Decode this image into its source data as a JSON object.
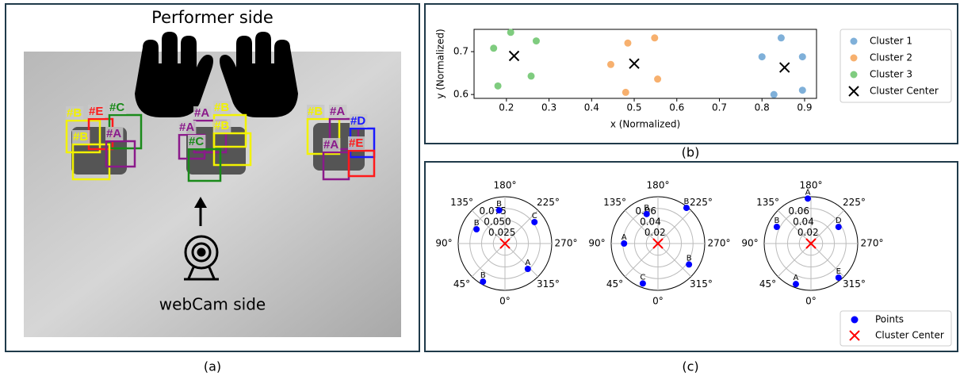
{
  "panel_a": {
    "top_label": "Performer side",
    "bottom_label": "webCam side",
    "boxes": [
      {
        "label": "#B",
        "color": "#f2f200"
      },
      {
        "label": "#E",
        "color": "#ff1a1a"
      },
      {
        "label": "#C",
        "color": "#1a8a1a"
      },
      {
        "label": "#B",
        "color": "#f2f200"
      },
      {
        "label": "#A",
        "color": "#8b1a8b"
      },
      {
        "label": "#A",
        "color": "#8b1a8b"
      },
      {
        "label": "#B",
        "color": "#f2f200"
      },
      {
        "label": "#A",
        "color": "#8b1a8b"
      },
      {
        "label": "#B",
        "color": "#f2f200"
      },
      {
        "label": "#C",
        "color": "#1a8a1a"
      },
      {
        "label": "#B",
        "color": "#f2f200"
      },
      {
        "label": "#A",
        "color": "#8b1a8b"
      },
      {
        "label": "#D",
        "color": "#1a1aff"
      },
      {
        "label": "#A",
        "color": "#8b1a8b"
      },
      {
        "label": "#E",
        "color": "#ff1a1a"
      }
    ]
  },
  "captions": [
    "(a)",
    "(b)",
    "(c)"
  ],
  "chart_data": [
    {
      "type": "scatter",
      "x_label": "x (Normalized)",
      "y_label": "y (Normalized)",
      "xlim": [
        0.124,
        0.928
      ],
      "ylim": [
        0.591,
        0.752
      ],
      "xticks": [
        0.2,
        0.3,
        0.4,
        0.5,
        0.6,
        0.7,
        0.8,
        0.9
      ],
      "yticks": [
        0.6,
        0.7
      ],
      "series": [
        {
          "name": "Cluster 1",
          "color": "#7fb0d9",
          "marker": "o",
          "x": [
            0.8,
            0.845,
            0.895,
            0.895,
            0.828
          ],
          "values": [
            0.688,
            0.732,
            0.688,
            0.61,
            0.6
          ]
        },
        {
          "name": "Cluster 2",
          "color": "#f7b06e",
          "marker": "o",
          "x": [
            0.485,
            0.548,
            0.445,
            0.555,
            0.48
          ],
          "values": [
            0.72,
            0.732,
            0.67,
            0.636,
            0.605
          ]
        },
        {
          "name": "Cluster 3",
          "color": "#7fcc7f",
          "marker": "o",
          "x": [
            0.21,
            0.27,
            0.17,
            0.258,
            0.18
          ],
          "values": [
            0.745,
            0.725,
            0.708,
            0.643,
            0.62
          ]
        },
        {
          "name": "Cluster Center",
          "color": "#000000",
          "marker": "x",
          "x": [
            0.218,
            0.5,
            0.853
          ],
          "values": [
            0.69,
            0.672,
            0.663
          ]
        }
      ]
    },
    {
      "type": "polar",
      "rlim": [
        0,
        0.1
      ],
      "rticks": [
        0.025,
        {
          "value": 0.05,
          "label": "0.050"
        },
        0.075
      ],
      "thetaticks": [
        {
          "value": 0,
          "label": "0°"
        },
        {
          "value": 45,
          "label": "45°"
        },
        {
          "value": 90,
          "label": "90°"
        },
        {
          "value": 135,
          "label": "135°"
        },
        {
          "value": 180,
          "label": "180°"
        },
        {
          "value": 225,
          "label": "225°"
        },
        {
          "value": 270,
          "label": "270°"
        },
        {
          "value": 315,
          "label": "315°"
        }
      ],
      "series": [
        {
          "color": "#0000ff",
          "marker": "o",
          "theta": [
            170,
            234,
            116.6,
            318,
            30
          ],
          "values": [
            0.072,
            0.078,
            0.068,
            0.073,
            0.094
          ],
          "labels": [
            "B",
            "C",
            "B",
            "A",
            "B"
          ]
        },
        {
          "color": "#ff0000",
          "marker": "x",
          "theta": [
            0
          ],
          "values": [
            0
          ]
        }
      ]
    },
    {
      "type": "polar",
      "rlim": [
        0,
        0.08
      ],
      "rticks": [
        0.02,
        0.04,
        0.06
      ],
      "thetaticks": [
        {
          "value": 0,
          "label": "0°"
        },
        {
          "value": 45,
          "label": "45°"
        },
        {
          "value": 90,
          "label": "90°"
        },
        {
          "value": 135,
          "label": "135°"
        },
        {
          "value": 180,
          "label": "180°"
        },
        {
          "value": 225,
          "label": "225°"
        },
        {
          "value": 270,
          "label": "270°"
        },
        {
          "value": 315,
          "label": "315°"
        }
      ],
      "series": [
        {
          "color": "#0000ff",
          "marker": "o",
          "theta": [
            159,
            218.7,
            90,
            304,
            20.8
          ],
          "values": [
            0.054,
            0.078,
            0.058,
            0.064,
            0.073
          ],
          "labels": [
            "B",
            "B",
            "A",
            "B",
            "C"
          ]
        },
        {
          "color": "#ff0000",
          "marker": "x",
          "theta": [
            0
          ],
          "values": [
            0
          ]
        }
      ]
    },
    {
      "type": "polar",
      "rlim": [
        0,
        0.08
      ],
      "rticks": [
        0.02,
        0.04,
        0.06
      ],
      "thetaticks": [
        {
          "value": 0,
          "label": "0°"
        },
        {
          "value": 45,
          "label": "45°"
        },
        {
          "value": 90,
          "label": "90°"
        },
        {
          "value": 135,
          "label": "135°"
        },
        {
          "value": 180,
          "label": "180°"
        },
        {
          "value": 225,
          "label": "225°"
        },
        {
          "value": 270,
          "label": "270°"
        },
        {
          "value": 315,
          "label": "315°"
        }
      ],
      "series": [
        {
          "name": "Points",
          "color": "#0000ff",
          "marker": "o",
          "theta": [
            176,
            116,
            239,
            321,
            20.4
          ],
          "values": [
            0.077,
            0.065,
            0.055,
            0.075,
            0.074
          ],
          "labels": [
            "A",
            "B",
            "D",
            "E",
            "A"
          ]
        },
        {
          "name": "Cluster Center",
          "color": "#ff0000",
          "marker": "x",
          "theta": [
            0
          ],
          "values": [
            0
          ]
        }
      ]
    }
  ]
}
